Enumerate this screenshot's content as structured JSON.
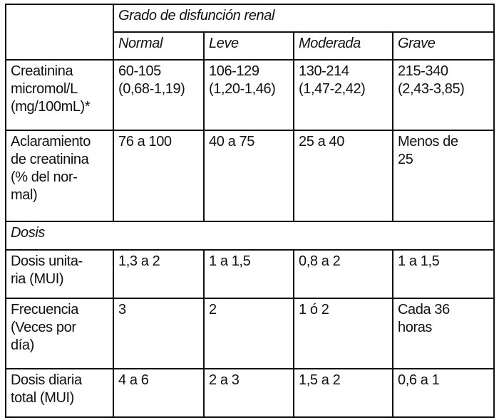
{
  "header": {
    "group": "Grado de disfunción renal",
    "columns": [
      "Normal",
      "Leve",
      "Moderada",
      "Grave"
    ]
  },
  "rows_top": [
    {
      "label": [
        "Creatinina",
        "micromol/L",
        "(mg/100mL)*"
      ],
      "cells": [
        [
          "60-105",
          "(0,68-1,19)"
        ],
        [
          "106-129",
          "(1,20-1,46)"
        ],
        [
          "130-214",
          "(1,47-2,42)"
        ],
        [
          "215-340",
          "(2,43-3,85)"
        ]
      ]
    },
    {
      "label": [
        "Aclaramiento",
        "de creatinina",
        "(% del nor-",
        "mal)"
      ],
      "cells": [
        [
          "76 a 100"
        ],
        [
          "40 a 75"
        ],
        [
          "25 a 40"
        ],
        [
          "Menos de",
          "25"
        ]
      ]
    }
  ],
  "section": "Dosis",
  "rows_bottom": [
    {
      "label": [
        "Dosis unita-",
        "ria (MUI)"
      ],
      "cells": [
        [
          "1,3 a 2"
        ],
        [
          "1 a 1,5"
        ],
        [
          "0,8 a 2"
        ],
        [
          "1 a 1,5"
        ]
      ]
    },
    {
      "label": [
        "Frecuencia",
        "(Veces por",
        "día)"
      ],
      "cells": [
        [
          "3"
        ],
        [
          "2"
        ],
        [
          "1 ó 2"
        ],
        [
          "Cada 36",
          "horas"
        ]
      ]
    },
    {
      "label": [
        "Dosis diaria",
        "total (MUI)"
      ],
      "cells": [
        [
          "4 a 6"
        ],
        [
          "2 a 3"
        ],
        [
          "1,5 a 2"
        ],
        [
          "0,6 a 1"
        ]
      ]
    }
  ]
}
